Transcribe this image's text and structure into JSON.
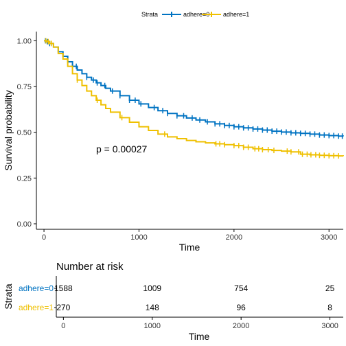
{
  "chart_data": [
    {
      "type": "line",
      "subtype": "kaplan-meier",
      "title": "",
      "xlabel": "Time",
      "ylabel": "Survival probability",
      "xlim": [
        -80,
        3150
      ],
      "ylim": [
        -0.03,
        1.05
      ],
      "x_ticks": [
        0,
        1000,
        2000,
        3000
      ],
      "y_ticks": [
        0,
        0.25,
        0.5,
        0.75,
        1
      ],
      "y_tick_labels": [
        "0.00",
        "0.25",
        "0.50",
        "0.75",
        "1.00"
      ],
      "legend": {
        "title": "Strata",
        "position": "top",
        "entries": [
          "adhere=0",
          "adhere=1"
        ]
      },
      "annotation": "p = 0.00027",
      "series": [
        {
          "name": "adhere=0",
          "color": "#0073C2",
          "x": [
            0,
            30,
            60,
            100,
            150,
            200,
            250,
            300,
            350,
            400,
            450,
            500,
            550,
            600,
            650,
            700,
            800,
            900,
            1000,
            1100,
            1200,
            1300,
            1400,
            1500,
            1600,
            1700,
            1800,
            1900,
            2000,
            2100,
            2200,
            2300,
            2400,
            2500,
            2600,
            2700,
            2800,
            2900,
            3000,
            3100,
            3150
          ],
          "y": [
            1.0,
            0.995,
            0.985,
            0.965,
            0.94,
            0.915,
            0.885,
            0.86,
            0.84,
            0.82,
            0.8,
            0.785,
            0.77,
            0.755,
            0.74,
            0.725,
            0.7,
            0.675,
            0.655,
            0.635,
            0.618,
            0.603,
            0.59,
            0.578,
            0.567,
            0.557,
            0.546,
            0.537,
            0.53,
            0.524,
            0.518,
            0.512,
            0.506,
            0.501,
            0.497,
            0.494,
            0.49,
            0.485,
            0.482,
            0.479,
            0.478
          ],
          "censor_x": [
            15,
            35,
            60,
            250,
            300,
            340,
            450,
            520,
            560,
            640,
            720,
            800,
            900,
            960,
            1020,
            1160,
            1250,
            1300,
            1400,
            1470,
            1560,
            1640,
            1720,
            1800,
            1850,
            1900,
            1950,
            2000,
            2050,
            2100,
            2150,
            2200,
            2250,
            2300,
            2350,
            2400,
            2450,
            2500,
            2550,
            2600,
            2650,
            2700,
            2750,
            2800,
            2850,
            2900,
            2950,
            3000,
            3050,
            3100,
            3140
          ]
        },
        {
          "name": "adhere=1",
          "color": "#EFC000",
          "x": [
            0,
            30,
            60,
            100,
            150,
            200,
            250,
            300,
            350,
            400,
            450,
            500,
            550,
            600,
            650,
            700,
            800,
            900,
            1000,
            1100,
            1200,
            1300,
            1400,
            1500,
            1600,
            1700,
            1800,
            1900,
            2000,
            2100,
            2200,
            2300,
            2400,
            2500,
            2600,
            2700,
            2800,
            2900,
            3000,
            3100,
            3150
          ],
          "y": [
            1.0,
            0.995,
            0.985,
            0.965,
            0.93,
            0.9,
            0.86,
            0.82,
            0.785,
            0.755,
            0.725,
            0.7,
            0.675,
            0.65,
            0.63,
            0.61,
            0.58,
            0.555,
            0.53,
            0.51,
            0.49,
            0.475,
            0.465,
            0.455,
            0.448,
            0.442,
            0.437,
            0.432,
            0.427,
            0.418,
            0.41,
            0.405,
            0.401,
            0.397,
            0.393,
            0.38,
            0.377,
            0.374,
            0.372,
            0.371,
            0.37
          ],
          "censor_x": [
            20,
            45,
            80,
            350,
            560,
            820,
            1270,
            1810,
            1850,
            1900,
            2000,
            2050,
            2100,
            2150,
            2220,
            2260,
            2300,
            2360,
            2420,
            2560,
            2600,
            2680,
            2720,
            2770,
            2810,
            2860,
            2900,
            2950,
            3000,
            3050,
            3100
          ]
        }
      ]
    },
    {
      "type": "table",
      "title": "Number at risk",
      "xlabel": "Time",
      "ylabel": "Strata",
      "xlim": [
        -80,
        3150
      ],
      "x_ticks": [
        0,
        1000,
        2000,
        3000
      ],
      "time_points": [
        0,
        1000,
        2000,
        3000
      ],
      "rows": [
        {
          "name": "adhere=0",
          "color": "#0073C2",
          "values": [
            "1588",
            "1009",
            "754",
            "25"
          ]
        },
        {
          "name": "adhere=1",
          "color": "#EFC000",
          "values": [
            "270",
            "148",
            "96",
            "8"
          ]
        }
      ]
    }
  ]
}
